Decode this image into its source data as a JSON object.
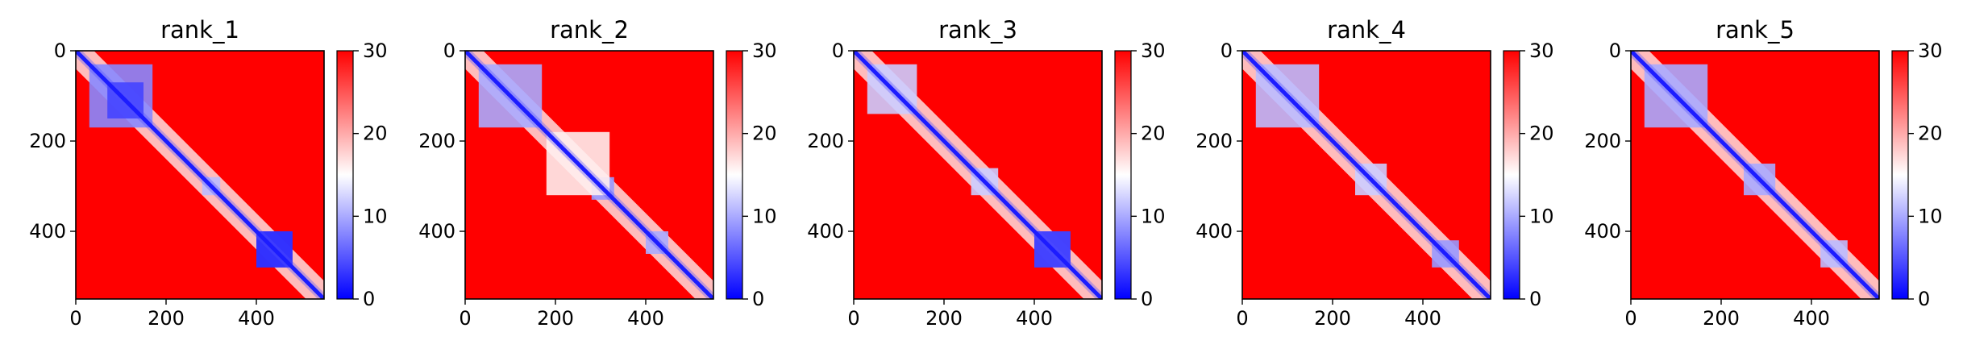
{
  "chart_data": {
    "type": "heatmap",
    "colormap": {
      "name": "bwr",
      "low_color": "#0000ff",
      "mid_color": "#ffffff",
      "high_color": "#ff0000",
      "range": [
        0,
        30
      ],
      "ticks": [
        0,
        10,
        20,
        30
      ]
    },
    "x_ticks": [
      0,
      200,
      400
    ],
    "y_ticks": [
      0,
      200,
      400
    ],
    "axis_range": [
      0,
      550
    ],
    "panels": [
      {
        "title": "rank_1",
        "blocks": [
          {
            "range": [
              30,
              170
            ],
            "value": 8
          },
          {
            "range": [
              70,
              150
            ],
            "value": 4
          },
          {
            "range": [
              400,
              480
            ],
            "value": 2
          },
          {
            "range": [
              280,
              320
            ],
            "value": 11
          }
        ],
        "offdiag": [
          {
            "x": [
              400,
              480
            ],
            "y": [
              400,
              480
            ],
            "value": 3
          }
        ]
      },
      {
        "title": "rank_2",
        "blocks": [
          {
            "range": [
              30,
              170
            ],
            "value": 10
          },
          {
            "range": [
              280,
              330
            ],
            "value": 9
          },
          {
            "range": [
              400,
              450
            ],
            "value": 10
          },
          {
            "range": [
              180,
              320
            ],
            "value": 16
          }
        ],
        "offdiag": []
      },
      {
        "title": "rank_3",
        "blocks": [
          {
            "range": [
              30,
              140
            ],
            "value": 12
          },
          {
            "range": [
              400,
              480
            ],
            "value": 3
          },
          {
            "range": [
              260,
              320
            ],
            "value": 12
          }
        ],
        "offdiag": [
          {
            "x": [
              400,
              480
            ],
            "y": [
              400,
              480
            ],
            "value": 4
          }
        ]
      },
      {
        "title": "rank_4",
        "blocks": [
          {
            "range": [
              30,
              170
            ],
            "value": 11
          },
          {
            "range": [
              250,
              320
            ],
            "value": 12
          },
          {
            "range": [
              420,
              480
            ],
            "value": 9
          }
        ],
        "offdiag": []
      },
      {
        "title": "rank_5",
        "blocks": [
          {
            "range": [
              30,
              170
            ],
            "value": 10
          },
          {
            "range": [
              250,
              320
            ],
            "value": 10
          },
          {
            "range": [
              420,
              480
            ],
            "value": 11
          }
        ],
        "offdiag": []
      }
    ]
  }
}
